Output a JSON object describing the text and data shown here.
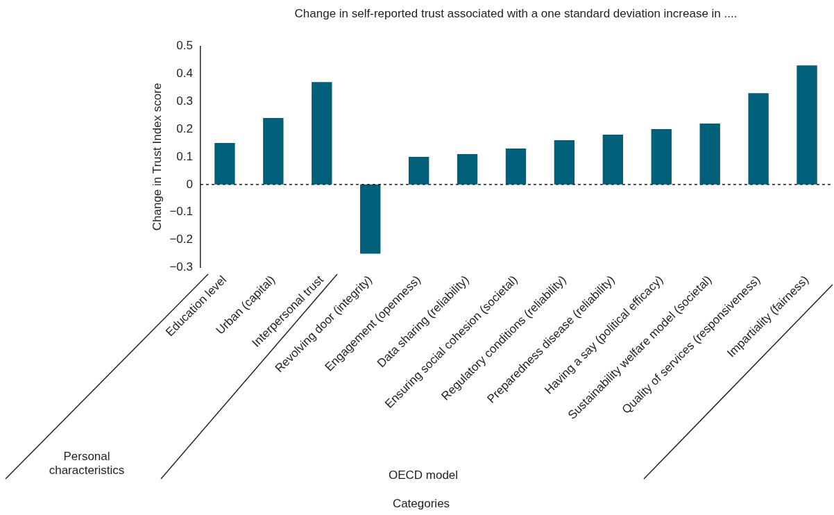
{
  "chart_data": {
    "type": "bar",
    "title": "Change in self-reported trust associated with a one standard deviation increase in ....",
    "ylabel": "Change in Trust Index score",
    "categories": [
      "Education level",
      "Urban (capital)",
      "Interpersonal trust",
      "Revolving door (integrity)",
      "Engagement (openness)",
      "Data sharing (reliability)",
      "Ensuring social cohesion (societal)",
      "Regulatory conditions (reliability)",
      "Preparedness disease (reliability)",
      "Having a say (political efficacy)",
      "Sustainability welfare model (societal)",
      "Quality of services (responsiveness)",
      "Impartiality (fairness)"
    ],
    "values": [
      0.15,
      0.24,
      0.37,
      -0.25,
      0.1,
      0.11,
      0.13,
      0.16,
      0.18,
      0.2,
      0.22,
      0.33,
      0.43
    ],
    "color": "#00607a",
    "ylim": [
      -0.3,
      0.5
    ],
    "yticks": [
      -0.3,
      -0.2,
      -0.1,
      0,
      0.1,
      0.2,
      0.3,
      0.4,
      0.5
    ],
    "ref_lines": [
      {
        "axis": "y",
        "value": 0,
        "color": "#222222",
        "line_style": "dashed"
      }
    ],
    "annotations": [
      "Personal characteristics",
      "OECD model",
      "Categories"
    ],
    "grid": false,
    "legend": false
  }
}
